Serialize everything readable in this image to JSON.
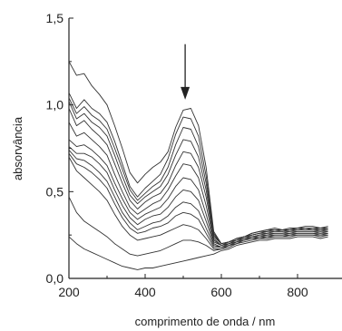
{
  "chart_data": {
    "type": "line",
    "title": "",
    "xlabel": "comprimento de onda / nm",
    "ylabel": "absorvância",
    "xlim": [
      200,
      900
    ],
    "ylim": [
      0.0,
      1.5
    ],
    "x_ticks": [
      200,
      400,
      600,
      800
    ],
    "x_tick_labels": [
      "200",
      "400",
      "600",
      "800"
    ],
    "y_ticks": [
      0.0,
      0.5,
      1.0,
      1.5
    ],
    "y_tick_labels": [
      "0,0",
      "0,5",
      "1,0",
      "1,5"
    ],
    "grid": false,
    "line_color": "#333333",
    "annotation": {
      "type": "arrow-down",
      "x": 505,
      "y_from": 1.35,
      "y_to": 1.03
    },
    "x": [
      200,
      220,
      240,
      260,
      280,
      300,
      320,
      340,
      360,
      380,
      400,
      420,
      440,
      460,
      480,
      500,
      520,
      540,
      560,
      580,
      600,
      620,
      640,
      660,
      680,
      700,
      720,
      740,
      760,
      780,
      800,
      820,
      840,
      860,
      880
    ],
    "series": [
      {
        "values": [
          1.25,
          1.17,
          1.18,
          1.11,
          1.06,
          1.0,
          0.88,
          0.75,
          0.61,
          0.55,
          0.6,
          0.64,
          0.67,
          0.73,
          0.87,
          0.97,
          0.98,
          0.88,
          0.64,
          0.27,
          0.2,
          0.21,
          0.23,
          0.24,
          0.26,
          0.27,
          0.28,
          0.29,
          0.28,
          0.29,
          0.29,
          0.3,
          0.3,
          0.29,
          0.3
        ]
      },
      {
        "values": [
          1.07,
          0.98,
          1.03,
          0.98,
          0.95,
          0.9,
          0.79,
          0.66,
          0.53,
          0.47,
          0.52,
          0.56,
          0.6,
          0.69,
          0.83,
          0.93,
          0.92,
          0.82,
          0.59,
          0.26,
          0.2,
          0.21,
          0.23,
          0.24,
          0.26,
          0.27,
          0.28,
          0.28,
          0.28,
          0.28,
          0.29,
          0.29,
          0.29,
          0.29,
          0.29
        ]
      },
      {
        "values": [
          1.04,
          0.95,
          0.99,
          0.94,
          0.91,
          0.86,
          0.75,
          0.63,
          0.51,
          0.45,
          0.49,
          0.53,
          0.56,
          0.64,
          0.77,
          0.87,
          0.86,
          0.76,
          0.55,
          0.25,
          0.2,
          0.21,
          0.23,
          0.24,
          0.26,
          0.27,
          0.27,
          0.28,
          0.28,
          0.28,
          0.29,
          0.29,
          0.29,
          0.28,
          0.29
        ]
      },
      {
        "values": [
          1.02,
          0.92,
          0.95,
          0.9,
          0.87,
          0.82,
          0.71,
          0.59,
          0.48,
          0.43,
          0.47,
          0.5,
          0.53,
          0.6,
          0.71,
          0.8,
          0.79,
          0.7,
          0.51,
          0.24,
          0.2,
          0.21,
          0.23,
          0.24,
          0.25,
          0.26,
          0.27,
          0.28,
          0.27,
          0.28,
          0.28,
          0.29,
          0.28,
          0.28,
          0.28
        ]
      },
      {
        "values": [
          0.98,
          0.88,
          0.91,
          0.86,
          0.82,
          0.77,
          0.66,
          0.55,
          0.45,
          0.4,
          0.44,
          0.47,
          0.49,
          0.55,
          0.65,
          0.73,
          0.72,
          0.64,
          0.47,
          0.23,
          0.19,
          0.21,
          0.22,
          0.24,
          0.25,
          0.26,
          0.27,
          0.27,
          0.27,
          0.28,
          0.28,
          0.28,
          0.28,
          0.28,
          0.28
        ]
      },
      {
        "values": [
          0.9,
          0.82,
          0.84,
          0.8,
          0.76,
          0.71,
          0.6,
          0.5,
          0.41,
          0.37,
          0.4,
          0.43,
          0.45,
          0.51,
          0.59,
          0.66,
          0.65,
          0.58,
          0.42,
          0.22,
          0.19,
          0.2,
          0.22,
          0.23,
          0.25,
          0.26,
          0.26,
          0.27,
          0.27,
          0.27,
          0.28,
          0.28,
          0.28,
          0.27,
          0.28
        ]
      },
      {
        "values": [
          0.8,
          0.76,
          0.77,
          0.74,
          0.7,
          0.65,
          0.55,
          0.46,
          0.38,
          0.34,
          0.37,
          0.39,
          0.41,
          0.46,
          0.53,
          0.58,
          0.57,
          0.51,
          0.37,
          0.21,
          0.19,
          0.2,
          0.22,
          0.23,
          0.24,
          0.25,
          0.26,
          0.26,
          0.26,
          0.27,
          0.27,
          0.27,
          0.27,
          0.27,
          0.27
        ]
      },
      {
        "values": [
          0.76,
          0.72,
          0.72,
          0.7,
          0.66,
          0.61,
          0.51,
          0.42,
          0.35,
          0.31,
          0.34,
          0.36,
          0.37,
          0.41,
          0.47,
          0.51,
          0.5,
          0.45,
          0.33,
          0.2,
          0.18,
          0.2,
          0.21,
          0.23,
          0.24,
          0.25,
          0.25,
          0.26,
          0.26,
          0.26,
          0.27,
          0.27,
          0.27,
          0.26,
          0.27
        ]
      },
      {
        "values": [
          0.74,
          0.69,
          0.68,
          0.65,
          0.61,
          0.56,
          0.47,
          0.38,
          0.32,
          0.28,
          0.3,
          0.32,
          0.33,
          0.36,
          0.41,
          0.44,
          0.43,
          0.39,
          0.29,
          0.19,
          0.18,
          0.19,
          0.21,
          0.22,
          0.24,
          0.24,
          0.25,
          0.25,
          0.25,
          0.26,
          0.26,
          0.26,
          0.26,
          0.26,
          0.26
        ]
      },
      {
        "values": [
          0.72,
          0.66,
          0.64,
          0.61,
          0.57,
          0.52,
          0.43,
          0.35,
          0.29,
          0.26,
          0.27,
          0.29,
          0.3,
          0.32,
          0.36,
          0.38,
          0.37,
          0.34,
          0.26,
          0.18,
          0.18,
          0.19,
          0.21,
          0.22,
          0.23,
          0.24,
          0.24,
          0.25,
          0.25,
          0.25,
          0.26,
          0.26,
          0.26,
          0.25,
          0.26
        ]
      },
      {
        "values": [
          0.7,
          0.62,
          0.58,
          0.54,
          0.5,
          0.45,
          0.37,
          0.3,
          0.25,
          0.22,
          0.23,
          0.24,
          0.25,
          0.27,
          0.29,
          0.31,
          0.3,
          0.28,
          0.23,
          0.17,
          0.17,
          0.19,
          0.2,
          0.22,
          0.23,
          0.23,
          0.24,
          0.24,
          0.24,
          0.25,
          0.25,
          0.25,
          0.25,
          0.25,
          0.25
        ]
      },
      {
        "values": [
          0.47,
          0.38,
          0.33,
          0.3,
          0.27,
          0.24,
          0.2,
          0.17,
          0.14,
          0.13,
          0.14,
          0.15,
          0.16,
          0.18,
          0.2,
          0.22,
          0.22,
          0.21,
          0.19,
          0.16,
          0.17,
          0.18,
          0.2,
          0.21,
          0.22,
          0.23,
          0.23,
          0.24,
          0.24,
          0.24,
          0.25,
          0.25,
          0.25,
          0.24,
          0.25
        ]
      },
      {
        "values": [
          0.24,
          0.2,
          0.17,
          0.15,
          0.13,
          0.11,
          0.09,
          0.07,
          0.06,
          0.05,
          0.06,
          0.06,
          0.07,
          0.08,
          0.09,
          0.1,
          0.11,
          0.12,
          0.13,
          0.14,
          0.16,
          0.17,
          0.19,
          0.2,
          0.21,
          0.22,
          0.22,
          0.23,
          0.23,
          0.23,
          0.24,
          0.24,
          0.24,
          0.23,
          0.24
        ]
      }
    ]
  }
}
